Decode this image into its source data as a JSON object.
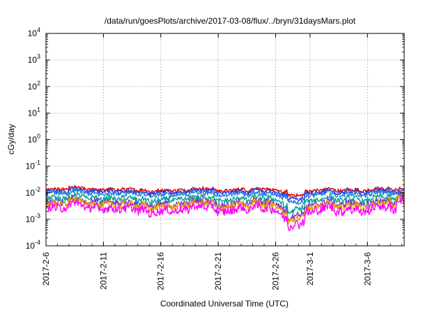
{
  "chart_data": {
    "type": "line",
    "title": "/data/run/goesPlots/archive/2017-03-08/flux/../bryn/31daysMars.plot",
    "xlabel": "Coordinated Universal Time (UTC)",
    "ylabel": "cGy/day",
    "yscale": "log",
    "ylim": [
      0.0001,
      10000
    ],
    "y_tick_values": [
      0.0001,
      0.001,
      0.01,
      0.1,
      1,
      10,
      100,
      1000,
      10000
    ],
    "y_tick_labels": [
      {
        "base": "10",
        "exp": "-4"
      },
      {
        "base": "10",
        "exp": "-3"
      },
      {
        "base": "10",
        "exp": "-2"
      },
      {
        "base": "10",
        "exp": "-1"
      },
      {
        "base": "10",
        "exp": "0"
      },
      {
        "base": "10",
        "exp": "1"
      },
      {
        "base": "10",
        "exp": "2"
      },
      {
        "base": "10",
        "exp": "3"
      },
      {
        "base": "10",
        "exp": "4"
      }
    ],
    "x_range_days": [
      0,
      31.2
    ],
    "x_ticks": [
      {
        "label": "2017-2-6",
        "day": 0
      },
      {
        "label": "2017-2-11",
        "day": 5
      },
      {
        "label": "2017-2-16",
        "day": 10
      },
      {
        "label": "2017-2-21",
        "day": 15
      },
      {
        "label": "2017-2-26",
        "day": 20
      },
      {
        "label": "2017-3-1",
        "day": 23
      },
      {
        "label": "2017-3-6",
        "day": 28
      }
    ],
    "grid": true,
    "series": [
      {
        "color": "#e00000",
        "base": 0.0125,
        "noise": 0.12
      },
      {
        "color": "#2040e0",
        "base": 0.0105,
        "noise": 0.12
      },
      {
        "color": "#2a78e0",
        "base": 0.0085,
        "noise": 0.14
      },
      {
        "color": "#00a898",
        "base": 0.0055,
        "noise": 0.18
      },
      {
        "color": "#7a30d0",
        "base": 0.0038,
        "noise": 0.22
      },
      {
        "color": "#e8a000",
        "base": 0.0032,
        "noise": 0.22
      },
      {
        "color": "#ff00ff",
        "base": 0.0022,
        "noise": 0.3
      }
    ]
  }
}
